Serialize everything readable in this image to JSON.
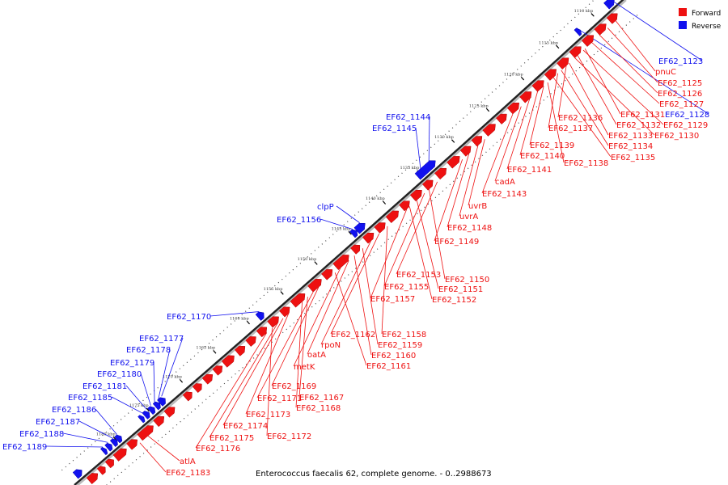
{
  "caption": "Enterococcus faecalis 62, complete genome. - 0..2988673",
  "legend": [
    {
      "label": "Forward",
      "color": "#ee1111",
      "strand": "forward"
    },
    {
      "label": "Reverse",
      "color": "#1111ee",
      "strand": "reverse"
    }
  ],
  "colors": {
    "forward": "#ee1111",
    "reverse": "#1111ee",
    "backbone": "#222222"
  },
  "ticks": [
    "1110 kbp",
    "1115 kbp",
    "1120 kbp",
    "1125 kbp",
    "1130 kbp",
    "1135 kbp",
    "1140 kbp",
    "1145 kbp",
    "1150 kbp",
    "1155 kbp",
    "1160 kbp",
    "1165 kbp",
    "1170 kbp",
    "1175 kbp",
    "1180 kbp"
  ],
  "reverse_labels": [
    "EF62_1123",
    "EF62_1128",
    "EF62_1144",
    "EF62_1145",
    "clpP",
    "EF62_1156",
    "EF62_1170",
    "EF62_1177",
    "EF62_1178",
    "EF62_1179",
    "EF62_1180",
    "EF62_1181",
    "EF62_1185",
    "EF62_1186",
    "EF62_1187",
    "EF62_1188",
    "EF62_1189"
  ],
  "forward_labels": [
    "pnuC",
    "EF62_1125",
    "EF62_1126",
    "EF62_1127",
    "EF62_1131",
    "EF62_1129",
    "EF62_1132",
    "EF62_1130",
    "EF62_1136",
    "EF62_1133",
    "EF62_1137",
    "EF62_1134",
    "EF62_1135",
    "EF62_1139",
    "EF62_1138",
    "EF62_1140",
    "EF62_1141",
    "cadA",
    "EF62_1143",
    "uvrB",
    "uvrA",
    "EF62_1148",
    "EF62_1149",
    "EF62_1153",
    "EF62_1150",
    "EF62_1155",
    "EF62_1151",
    "EF62_1157",
    "EF62_1152",
    "EF62_1158",
    "EF62_1162",
    "rpoN",
    "EF62_1159",
    "EF62_1160",
    "oatA",
    "metK",
    "EF62_1161",
    "EF62_1169",
    "EF62_1171",
    "EF62_1167",
    "EF62_1168",
    "EF62_1173",
    "EF62_1174",
    "EF62_1175",
    "EF62_1172",
    "EF62_1176",
    "atlA",
    "EF62_1183"
  ]
}
